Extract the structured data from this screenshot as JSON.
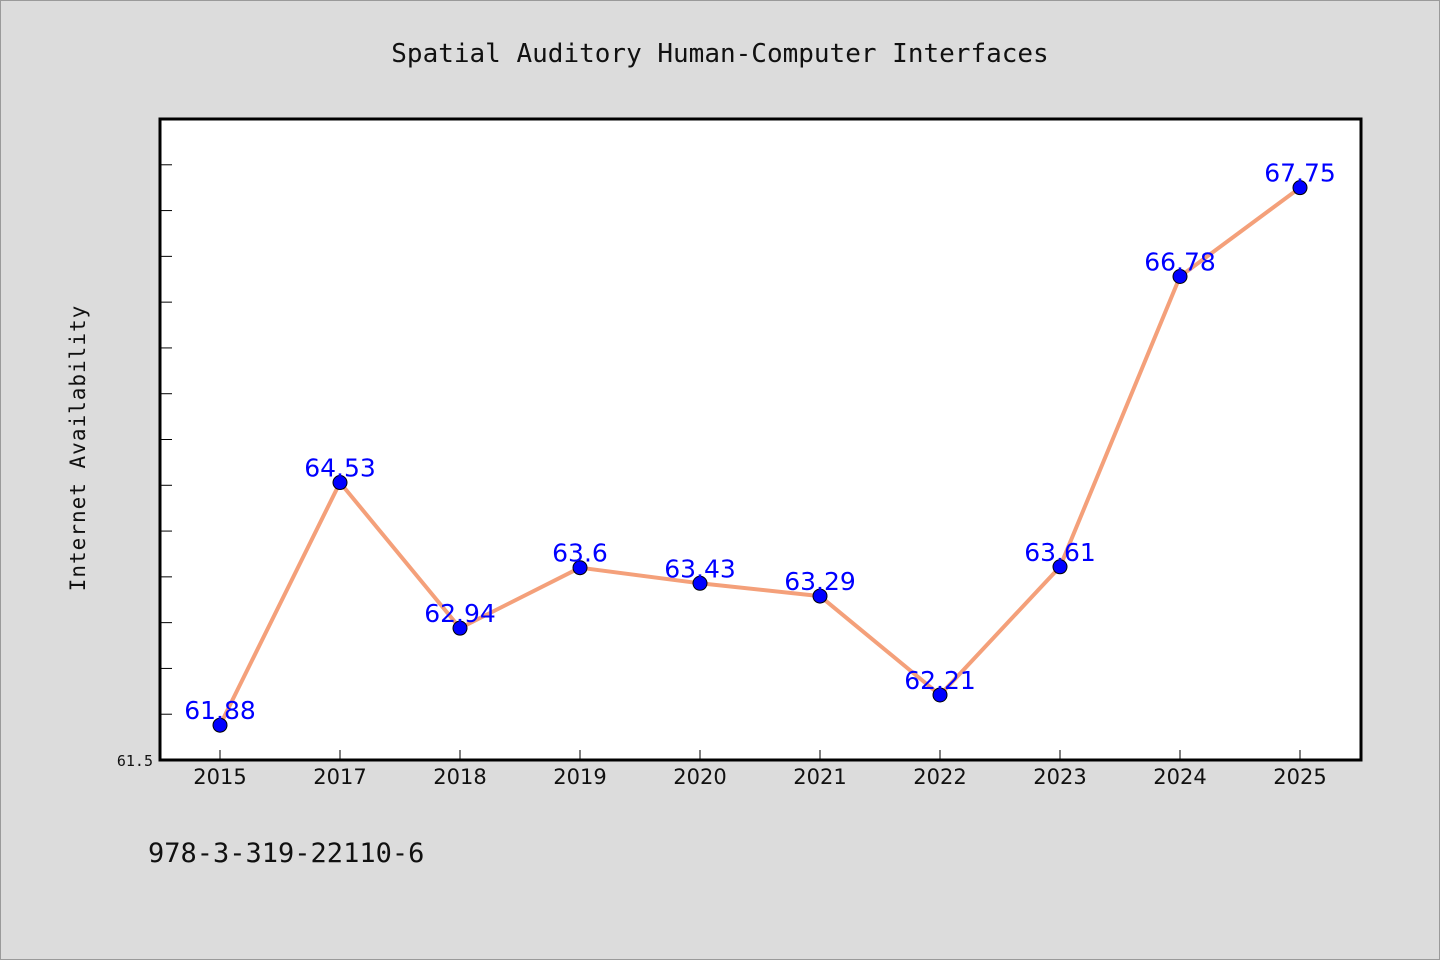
{
  "chart_data": {
    "type": "line",
    "title": "Spatial Auditory Human-Computer Interfaces",
    "xlabel": "",
    "ylabel": "Internet Availability",
    "categories": [
      "2015",
      "2017",
      "2018",
      "2019",
      "2020",
      "2021",
      "2022",
      "2023",
      "2024",
      "2025"
    ],
    "series": [
      {
        "values": [
          61.88,
          64.53,
          62.94,
          63.6,
          63.43,
          63.29,
          62.21,
          63.61,
          66.78,
          67.75
        ],
        "labels": [
          "61.88",
          "64.53",
          "62.94",
          "63.6",
          "63.43",
          "63.29",
          "62.21",
          "63.61",
          "66.78",
          "67.75"
        ],
        "line_color": "#f4a07a",
        "marker_color": "#0000ff"
      }
    ],
    "y_tick_labels": [
      "61.5"
    ],
    "ylim": [
      61.5,
      68.5
    ],
    "grid": false,
    "legend": "none"
  },
  "footer": {
    "isbn": "978-3-319-22110-6"
  },
  "colors": {
    "background": "#dcdcdc",
    "plot_background": "#ffffff",
    "data_label": "#0000ff"
  }
}
